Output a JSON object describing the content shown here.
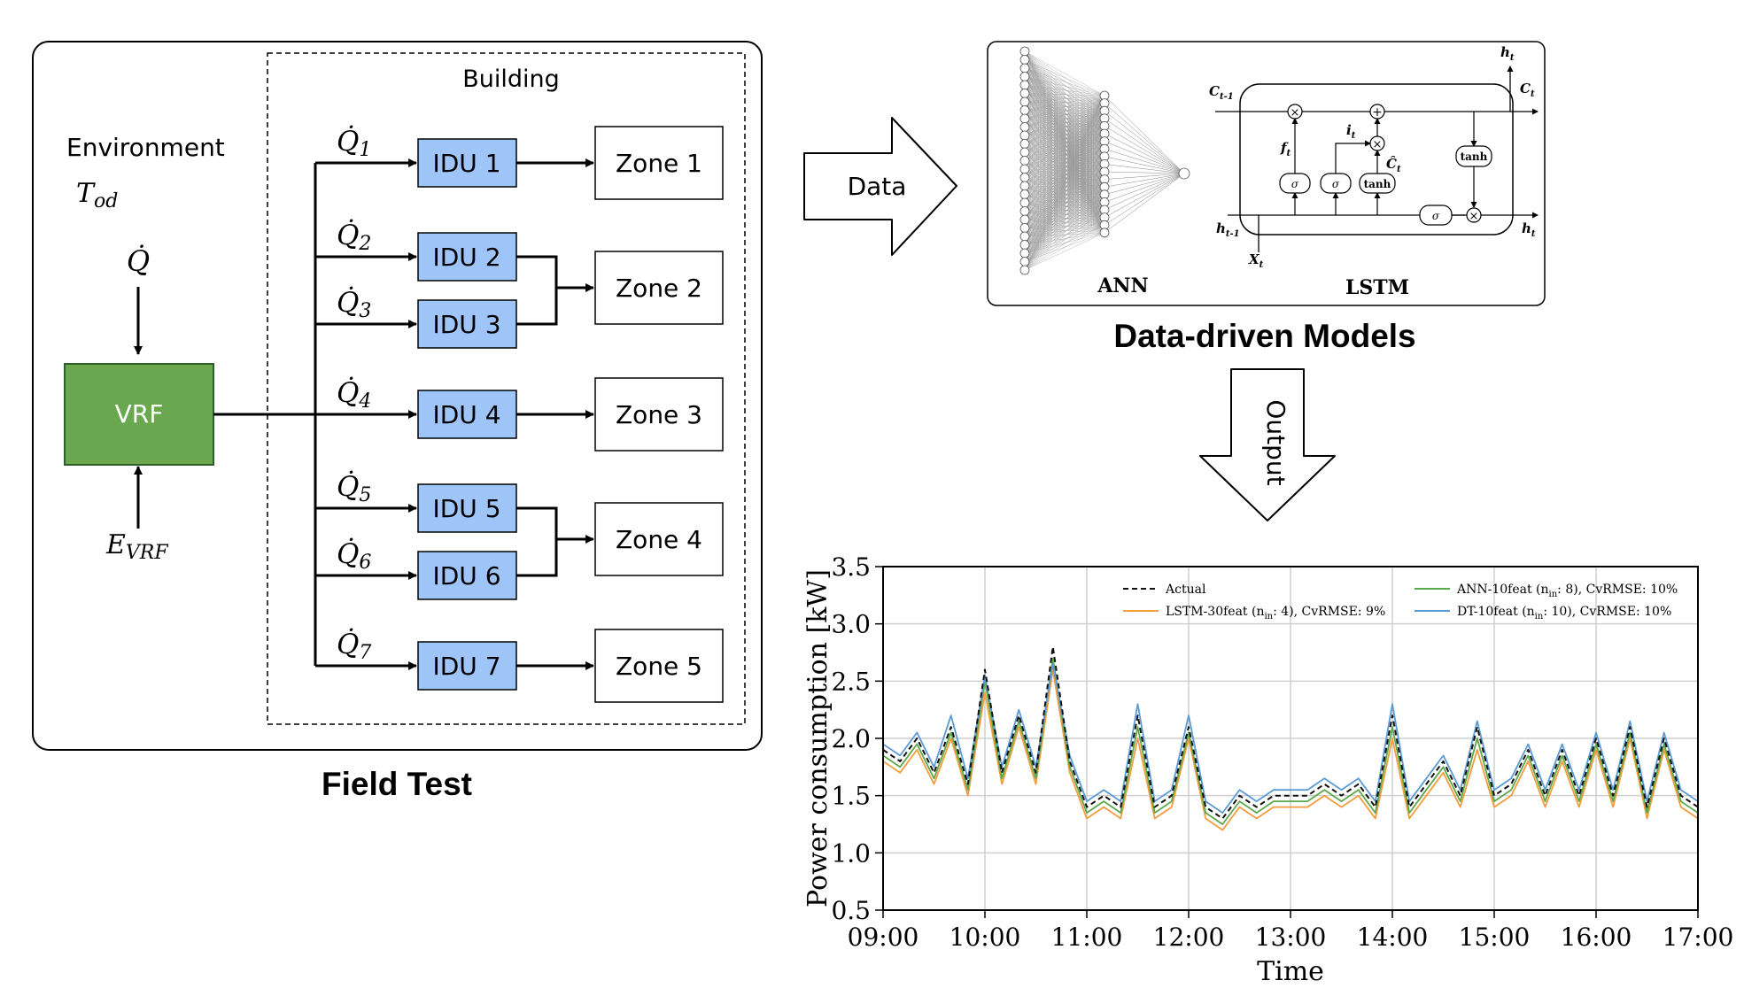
{
  "field_test": {
    "title": "Field Test",
    "environment_label": "Environment",
    "env_var": "T",
    "env_sub": "od",
    "q_label": "Q̇",
    "e_var": "E",
    "e_sub": "VRF",
    "vrf_label": "VRF",
    "building_label": "Building",
    "idus": [
      {
        "label": "IDU 1",
        "q": "Q̇",
        "q_sub": "1"
      },
      {
        "label": "IDU 2",
        "q": "Q̇",
        "q_sub": "2"
      },
      {
        "label": "IDU 3",
        "q": "Q̇",
        "q_sub": "3"
      },
      {
        "label": "IDU 4",
        "q": "Q̇",
        "q_sub": "4"
      },
      {
        "label": "IDU 5",
        "q": "Q̇",
        "q_sub": "5"
      },
      {
        "label": "IDU 6",
        "q": "Q̇",
        "q_sub": "6"
      },
      {
        "label": "IDU 7",
        "q": "Q̇",
        "q_sub": "7"
      }
    ],
    "zones": [
      "Zone 1",
      "Zone 2",
      "Zone 3",
      "Zone 4",
      "Zone 5"
    ],
    "colors": {
      "vrf": "#6aa84f",
      "idu": "#9fc5f8"
    }
  },
  "arrows": {
    "data_label": "Data",
    "output_label": "Output"
  },
  "models": {
    "title": "Data-driven Models",
    "ann_label": "ANN",
    "lstm_label": "LSTM",
    "lstm_terms": {
      "c_prev": "C",
      "c_prev_sub": "t-1",
      "c_t": "C",
      "c_t_sub": "t",
      "h_top": "h",
      "h_top_sub": "t",
      "h_prev": "h",
      "h_prev_sub": "t-1",
      "h_out": "h",
      "h_out_sub": "t",
      "x_t": "X",
      "x_t_sub": "t",
      "f_t": "f",
      "f_t_sub": "t",
      "i_t": "i",
      "i_t_sub": "t",
      "c_hat": "Ĉ",
      "c_hat_sub": "t",
      "sigma": "σ",
      "tanh": "tanh",
      "times": "×",
      "plus": "+"
    }
  },
  "chart_data": {
    "type": "line",
    "xlabel": "Time",
    "ylabel": "Power consumption [kW]",
    "x_ticks": [
      "09:00",
      "10:00",
      "11:00",
      "12:00",
      "13:00",
      "14:00",
      "15:00",
      "16:00",
      "17:00"
    ],
    "y_ticks": [
      "0.5",
      "1.0",
      "1.5",
      "2.0",
      "2.5",
      "3.0",
      "3.5"
    ],
    "xlim": [
      "09:00",
      "17:00"
    ],
    "ylim": [
      0.5,
      3.5
    ],
    "grid": true,
    "legend_placement": "top",
    "x": [
      "09:00",
      "09:10",
      "09:20",
      "09:30",
      "09:40",
      "09:50",
      "10:00",
      "10:10",
      "10:20",
      "10:30",
      "10:40",
      "10:50",
      "11:00",
      "11:10",
      "11:20",
      "11:30",
      "11:40",
      "11:50",
      "12:00",
      "12:10",
      "12:20",
      "12:30",
      "12:40",
      "12:50",
      "13:00",
      "13:10",
      "13:20",
      "13:30",
      "13:40",
      "13:50",
      "14:00",
      "14:10",
      "14:20",
      "14:30",
      "14:40",
      "14:50",
      "15:00",
      "15:10",
      "15:20",
      "15:30",
      "15:40",
      "15:50",
      "16:00",
      "16:10",
      "16:20",
      "16:30",
      "16:40",
      "16:50",
      "17:00"
    ],
    "series": [
      {
        "name": "Actual",
        "name_sub": "",
        "name_tail": "",
        "color": "#111111",
        "dash": true,
        "values": [
          1.9,
          1.8,
          2.0,
          1.7,
          2.1,
          1.6,
          2.6,
          1.7,
          2.2,
          1.7,
          2.8,
          1.8,
          1.4,
          1.5,
          1.4,
          2.2,
          1.4,
          1.5,
          2.1,
          1.4,
          1.3,
          1.5,
          1.4,
          1.5,
          1.5,
          1.5,
          1.6,
          1.5,
          1.6,
          1.4,
          2.2,
          1.4,
          1.6,
          1.8,
          1.5,
          2.1,
          1.5,
          1.6,
          1.9,
          1.5,
          1.9,
          1.5,
          2.0,
          1.5,
          2.1,
          1.4,
          2.0,
          1.5,
          1.4
        ]
      },
      {
        "name": "LSTM-30feat (n",
        "name_sub": "in",
        "name_tail": ": 4), CvRMSE: 9%",
        "color": "#f39c3c",
        "dash": false,
        "values": [
          1.8,
          1.7,
          1.9,
          1.6,
          2.0,
          1.5,
          2.4,
          1.6,
          2.1,
          1.6,
          2.6,
          1.7,
          1.3,
          1.4,
          1.3,
          2.0,
          1.3,
          1.4,
          2.0,
          1.3,
          1.2,
          1.4,
          1.3,
          1.4,
          1.4,
          1.4,
          1.5,
          1.4,
          1.5,
          1.3,
          2.0,
          1.3,
          1.5,
          1.7,
          1.4,
          1.9,
          1.4,
          1.5,
          1.8,
          1.4,
          1.8,
          1.4,
          1.9,
          1.4,
          2.0,
          1.3,
          1.9,
          1.4,
          1.3
        ]
      },
      {
        "name": "ANN-10feat (n",
        "name_sub": "in",
        "name_tail": ": 8), CvRMSE: 10%",
        "color": "#5ca84c",
        "dash": false,
        "values": [
          1.85,
          1.75,
          1.95,
          1.65,
          2.05,
          1.55,
          2.5,
          1.65,
          2.15,
          1.65,
          2.7,
          1.75,
          1.35,
          1.45,
          1.35,
          2.1,
          1.35,
          1.45,
          2.05,
          1.35,
          1.25,
          1.45,
          1.35,
          1.45,
          1.45,
          1.45,
          1.55,
          1.45,
          1.55,
          1.35,
          2.1,
          1.35,
          1.55,
          1.75,
          1.45,
          2.0,
          1.45,
          1.55,
          1.85,
          1.45,
          1.85,
          1.45,
          1.95,
          1.45,
          2.05,
          1.35,
          1.95,
          1.45,
          1.35
        ]
      },
      {
        "name": "DT-10feat (n",
        "name_sub": "in",
        "name_tail": ": 10), CvRMSE: 10%",
        "color": "#5b9bd5",
        "dash": false,
        "values": [
          1.95,
          1.85,
          2.05,
          1.75,
          2.2,
          1.65,
          2.55,
          1.75,
          2.25,
          1.75,
          2.65,
          1.85,
          1.45,
          1.55,
          1.45,
          2.3,
          1.45,
          1.55,
          2.2,
          1.45,
          1.35,
          1.55,
          1.45,
          1.55,
          1.55,
          1.55,
          1.65,
          1.55,
          1.65,
          1.45,
          2.3,
          1.45,
          1.65,
          1.85,
          1.55,
          2.15,
          1.55,
          1.65,
          1.95,
          1.55,
          1.95,
          1.55,
          2.05,
          1.55,
          2.15,
          1.45,
          2.05,
          1.55,
          1.45
        ]
      }
    ]
  }
}
